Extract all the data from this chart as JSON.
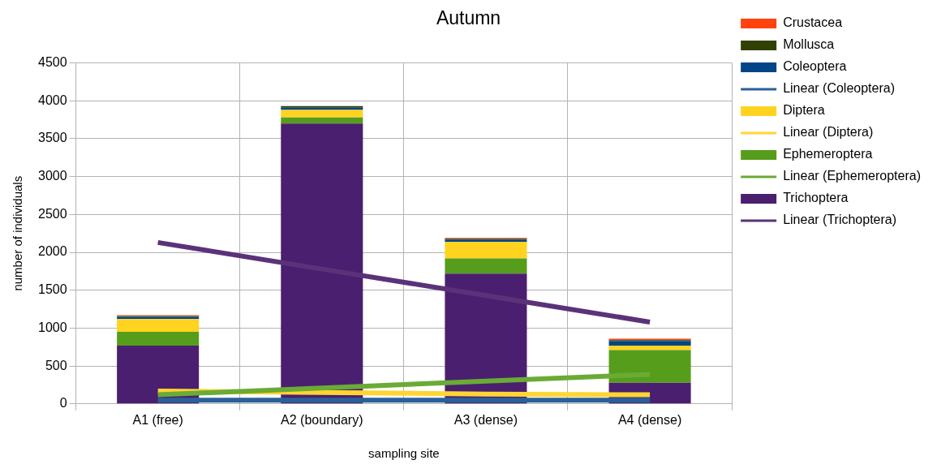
{
  "chart_data": {
    "type": "bar",
    "title": "Autumn",
    "xlabel": "sampling site",
    "ylabel": "number of individuals",
    "categories": [
      "A1 (free)",
      "A2 (boundary)",
      "A3 (dense)",
      "A4 (dense)"
    ],
    "stacked": true,
    "ylim": [
      0,
      4500
    ],
    "yticks": [
      0,
      500,
      1000,
      1500,
      2000,
      2500,
      3000,
      3500,
      4000,
      4500
    ],
    "grid": true,
    "legend": "right",
    "series": [
      {
        "name": "Linear (Trichoptera)",
        "type": "line",
        "color": "#5b3279",
        "values": [
          2130,
          1780,
          1430,
          1080
        ]
      },
      {
        "name": "Trichoptera",
        "color": "#4b1f6f",
        "values": [
          770,
          3700,
          1720,
          280
        ]
      },
      {
        "name": "Linear (Ephemeroptera)",
        "type": "line",
        "color": "#6aab35",
        "values": [
          120,
          210,
          300,
          390
        ]
      },
      {
        "name": "Ephemeroptera",
        "color": "#579d1c",
        "values": [
          180,
          80,
          200,
          430
        ]
      },
      {
        "name": "Linear (Diptera)",
        "type": "line",
        "color": "#ffd533",
        "values": [
          170,
          150,
          130,
          120
        ]
      },
      {
        "name": "Diptera",
        "color": "#ffd320",
        "values": [
          170,
          100,
          220,
          60
        ]
      },
      {
        "name": "Linear (Coleoptera)",
        "type": "line",
        "color": "#2a6099",
        "values": [
          50,
          50,
          50,
          50
        ]
      },
      {
        "name": "Coleoptera",
        "color": "#004586",
        "values": [
          30,
          30,
          30,
          60
        ]
      },
      {
        "name": "Mollusca",
        "color": "#314004",
        "values": [
          10,
          20,
          10,
          10
        ]
      },
      {
        "name": "Crustacea",
        "color": "#ff420e",
        "values": [
          10,
          0,
          10,
          20
        ]
      }
    ]
  }
}
